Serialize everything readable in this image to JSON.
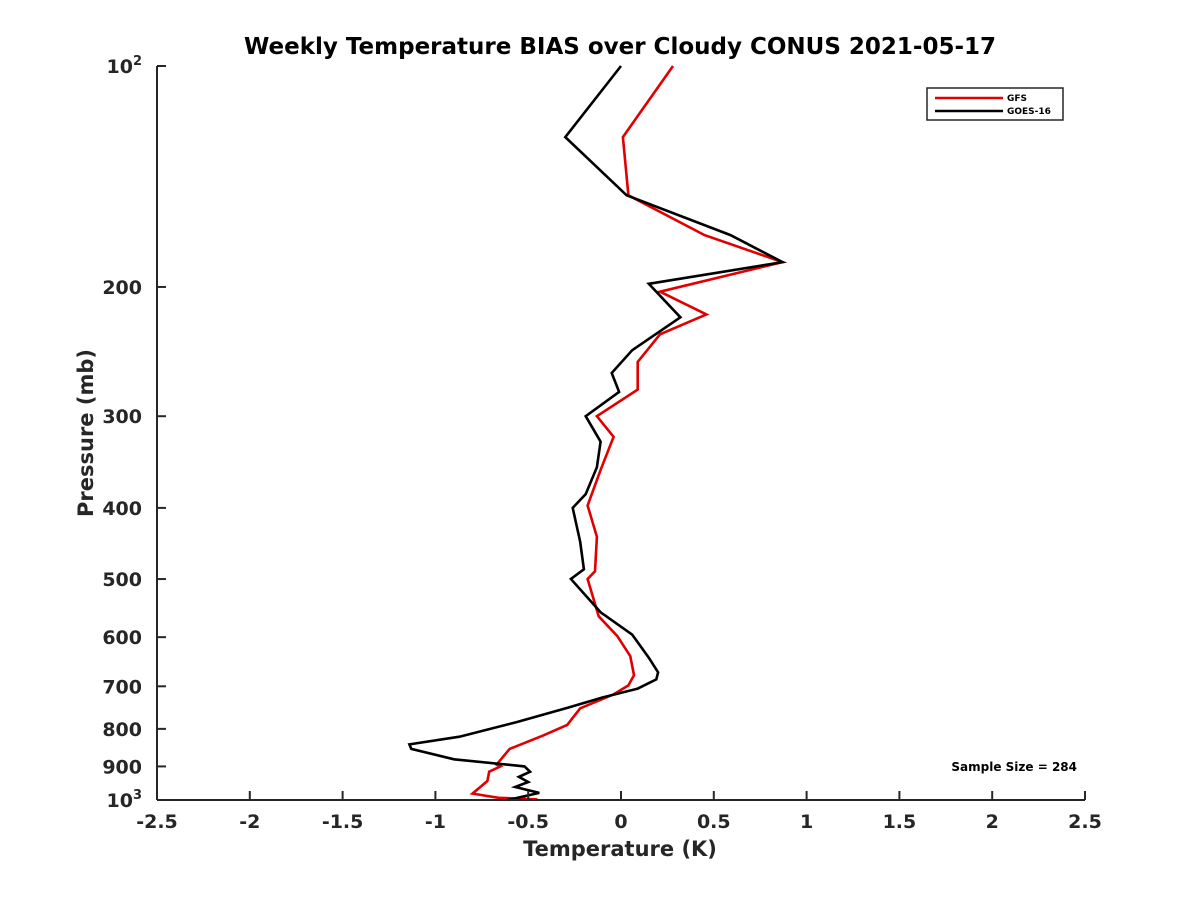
{
  "chart_data": {
    "type": "line",
    "title": "Weekly Temperature BIAS over Cloudy CONUS 2021-05-17",
    "xlabel": "Temperature (K)",
    "ylabel": "Pressure (mb)",
    "xlim": [
      -2.5,
      2.5
    ],
    "ylim": [
      1000,
      100
    ],
    "y_scale": "log",
    "y_direction": "reversed",
    "x_ticks": [
      {
        "value": -2.5,
        "label": "-2.5"
      },
      {
        "value": -2,
        "label": "-2"
      },
      {
        "value": -1.5,
        "label": "-1.5"
      },
      {
        "value": -1,
        "label": "-1"
      },
      {
        "value": -0.5,
        "label": "-0.5"
      },
      {
        "value": 0,
        "label": "0"
      },
      {
        "value": 0.5,
        "label": "0.5"
      },
      {
        "value": 1,
        "label": "1"
      },
      {
        "value": 1.5,
        "label": "1.5"
      },
      {
        "value": 2,
        "label": "2"
      },
      {
        "value": 2.5,
        "label": "2.5"
      }
    ],
    "y_ticks": [
      {
        "value": 100,
        "label": "10",
        "sup": "2"
      },
      {
        "value": 200,
        "label": "200"
      },
      {
        "value": 300,
        "label": "300"
      },
      {
        "value": 400,
        "label": "400"
      },
      {
        "value": 500,
        "label": "500"
      },
      {
        "value": 600,
        "label": "600"
      },
      {
        "value": 700,
        "label": "700"
      },
      {
        "value": 800,
        "label": "800"
      },
      {
        "value": 900,
        "label": "900"
      },
      {
        "value": 1000,
        "label": "10",
        "sup": "3"
      }
    ],
    "legend_position": "top-right",
    "grid": false,
    "annotation": "Sample Size = 284",
    "series": [
      {
        "name": "GFS",
        "color": "#e00000",
        "points": [
          [
            0.28,
            100
          ],
          [
            0.01,
            125
          ],
          [
            0.04,
            150
          ],
          [
            0.45,
            170
          ],
          [
            0.87,
            185
          ],
          [
            0.21,
            203
          ],
          [
            0.46,
            218
          ],
          [
            0.21,
            232
          ],
          [
            0.09,
            253
          ],
          [
            0.09,
            276
          ],
          [
            -0.13,
            300
          ],
          [
            -0.04,
            320
          ],
          [
            -0.11,
            355
          ],
          [
            -0.18,
            397
          ],
          [
            -0.13,
            438
          ],
          [
            -0.14,
            488
          ],
          [
            -0.18,
            500
          ],
          [
            -0.12,
            562
          ],
          [
            -0.02,
            598
          ],
          [
            0.05,
            637
          ],
          [
            0.07,
            676
          ],
          [
            0.04,
            698
          ],
          [
            -0.04,
            718
          ],
          [
            -0.22,
            750
          ],
          [
            -0.29,
            790
          ],
          [
            -0.42,
            817
          ],
          [
            -0.6,
            852
          ],
          [
            -0.67,
            895
          ],
          [
            -0.65,
            900
          ],
          [
            -0.71,
            915
          ],
          [
            -0.72,
            942
          ],
          [
            -0.8,
            980
          ],
          [
            -0.66,
            993
          ],
          [
            -0.45,
            998
          ]
        ]
      },
      {
        "name": "GOES-16",
        "color": "#000000",
        "points": [
          [
            0,
            100
          ],
          [
            -0.3,
            125
          ],
          [
            0.03,
            150
          ],
          [
            0.59,
            170
          ],
          [
            0.87,
            185
          ],
          [
            0.15,
            198
          ],
          [
            0.32,
            220
          ],
          [
            0.06,
            244
          ],
          [
            -0.05,
            262
          ],
          [
            -0.01,
            278
          ],
          [
            -0.19,
            300
          ],
          [
            -0.11,
            325
          ],
          [
            -0.13,
            352
          ],
          [
            -0.19,
            383
          ],
          [
            -0.26,
            400
          ],
          [
            -0.22,
            445
          ],
          [
            -0.2,
            485
          ],
          [
            -0.27,
            500
          ],
          [
            -0.11,
            555
          ],
          [
            0.06,
            595
          ],
          [
            0.15,
            640
          ],
          [
            0.2,
            670
          ],
          [
            0.19,
            685
          ],
          [
            0.09,
            705
          ],
          [
            -0.1,
            725
          ],
          [
            -0.28,
            748
          ],
          [
            -0.56,
            783
          ],
          [
            -0.87,
            820
          ],
          [
            -1.14,
            840
          ],
          [
            -1.13,
            852
          ],
          [
            -0.9,
            880
          ],
          [
            -0.52,
            900
          ],
          [
            -0.49,
            915
          ],
          [
            -0.55,
            930
          ],
          [
            -0.5,
            945
          ],
          [
            -0.57,
            960
          ],
          [
            -0.44,
            978
          ],
          [
            -0.61,
            1000
          ]
        ]
      }
    ]
  }
}
